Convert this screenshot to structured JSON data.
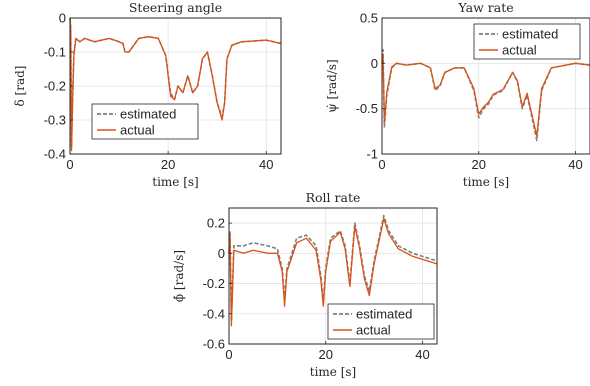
{
  "chart_data": [
    {
      "type": "line",
      "title": "Steering angle",
      "xlabel": "time [s]",
      "ylabel": "δ [rad]",
      "xlim": [
        0,
        43
      ],
      "ylim": [
        -0.4,
        0
      ],
      "xticks": [
        0,
        20,
        40
      ],
      "yticks": [
        -0.4,
        -0.3,
        -0.2,
        -0.1,
        0
      ],
      "ytick_labels": [
        "-0.4",
        "-0.3",
        "-0.2",
        "-0.1",
        "0"
      ],
      "grid": true,
      "legend": {
        "location": "lower-left",
        "entries": [
          "estimated",
          "actual"
        ]
      },
      "series": [
        {
          "name": "estimated",
          "style": "dashed",
          "color": "#7f7f7f",
          "x": [
            0,
            0.15,
            0.3,
            0.5,
            0.8,
            1.2,
            2,
            3,
            5,
            8,
            10,
            10.8,
            11.2,
            12,
            13,
            14,
            16,
            18,
            19.5,
            20.5,
            21.3,
            22,
            23,
            24,
            25,
            26,
            27,
            28,
            29,
            30,
            31,
            31.5,
            32,
            33,
            35,
            40,
            43
          ],
          "y": [
            0,
            -0.03,
            -0.38,
            -0.25,
            -0.1,
            -0.06,
            -0.07,
            -0.06,
            -0.07,
            -0.06,
            -0.07,
            -0.075,
            -0.1,
            -0.1,
            -0.08,
            -0.06,
            -0.055,
            -0.06,
            -0.11,
            -0.22,
            -0.24,
            -0.2,
            -0.22,
            -0.17,
            -0.22,
            -0.2,
            -0.12,
            -0.1,
            -0.17,
            -0.25,
            -0.29,
            -0.25,
            -0.12,
            -0.08,
            -0.07,
            -0.065,
            -0.075
          ]
        },
        {
          "name": "actual",
          "style": "solid",
          "color": "#d95319",
          "x": [
            0,
            0.15,
            0.3,
            0.5,
            0.8,
            1.2,
            2,
            3,
            5,
            8,
            10,
            10.8,
            11.2,
            12,
            13,
            14,
            16,
            18,
            19.5,
            20.5,
            21.3,
            22,
            23,
            24,
            25,
            26,
            27,
            28,
            29,
            30,
            31,
            31.5,
            32,
            33,
            35,
            40,
            43
          ],
          "y": [
            0,
            -0.03,
            -0.39,
            -0.26,
            -0.11,
            -0.06,
            -0.07,
            -0.06,
            -0.07,
            -0.06,
            -0.07,
            -0.075,
            -0.1,
            -0.1,
            -0.08,
            -0.06,
            -0.055,
            -0.06,
            -0.11,
            -0.23,
            -0.24,
            -0.2,
            -0.22,
            -0.17,
            -0.22,
            -0.2,
            -0.12,
            -0.1,
            -0.17,
            -0.25,
            -0.3,
            -0.25,
            -0.12,
            -0.08,
            -0.07,
            -0.065,
            -0.075
          ]
        }
      ]
    },
    {
      "type": "line",
      "title": "Yaw rate",
      "xlabel": "time [s]",
      "ylabel": "ψ̇ [rad/s]",
      "xlim": [
        0,
        43
      ],
      "ylim": [
        -1,
        0.5
      ],
      "xticks": [
        0,
        20,
        40
      ],
      "yticks": [
        -1,
        -0.5,
        0,
        0.5
      ],
      "ytick_labels": [
        "-1",
        "-0.5",
        "0",
        "0.5"
      ],
      "grid": true,
      "legend": {
        "location": "top-right",
        "entries": [
          "estimated",
          "actual"
        ]
      },
      "series": [
        {
          "name": "estimated",
          "style": "dashed",
          "color": "#7f7f7f",
          "x": [
            0,
            0.2,
            0.5,
            1,
            2,
            3,
            5,
            8,
            10,
            11,
            12,
            13,
            15,
            17,
            19,
            20,
            21,
            22,
            23,
            25,
            27,
            28,
            29,
            30,
            31,
            32,
            33,
            35,
            40,
            43
          ],
          "y": [
            0,
            0.15,
            -0.7,
            -0.35,
            -0.05,
            0,
            -0.02,
            0,
            -0.05,
            -0.3,
            -0.25,
            -0.1,
            -0.05,
            -0.05,
            -0.3,
            -0.6,
            -0.5,
            -0.45,
            -0.35,
            -0.3,
            -0.1,
            -0.2,
            -0.5,
            -0.35,
            -0.6,
            -0.85,
            -0.3,
            -0.05,
            0,
            -0.02
          ]
        },
        {
          "name": "actual",
          "style": "solid",
          "color": "#d95319",
          "x": [
            0,
            0.2,
            0.5,
            1,
            2,
            3,
            5,
            8,
            10,
            11,
            12,
            13,
            15,
            17,
            19,
            20,
            21,
            22,
            23,
            25,
            27,
            28,
            29,
            30,
            31,
            32,
            33,
            35,
            40,
            43
          ],
          "y": [
            0,
            0.1,
            -0.65,
            -0.32,
            -0.04,
            0,
            -0.02,
            0,
            -0.05,
            -0.28,
            -0.24,
            -0.1,
            -0.05,
            -0.05,
            -0.28,
            -0.56,
            -0.48,
            -0.43,
            -0.34,
            -0.29,
            -0.1,
            -0.19,
            -0.48,
            -0.33,
            -0.57,
            -0.8,
            -0.28,
            -0.05,
            0,
            -0.02
          ]
        }
      ]
    },
    {
      "type": "line",
      "title": "Roll rate",
      "xlabel": "time [s]",
      "ylabel": "ϕ̇ [rad/s]",
      "xlim": [
        0,
        43
      ],
      "ylim": [
        -0.6,
        0.3
      ],
      "xticks": [
        0,
        20,
        40
      ],
      "yticks": [
        -0.6,
        -0.4,
        -0.2,
        0,
        0.2
      ],
      "ytick_labels": [
        "-0.6",
        "-0.4",
        "-0.2",
        "0",
        "0.2"
      ],
      "grid": true,
      "legend": {
        "location": "bottom-right",
        "entries": [
          "estimated",
          "actual"
        ]
      },
      "series": [
        {
          "name": "estimated",
          "style": "dashed",
          "color": "#7f7f7f",
          "x": [
            0,
            0.2,
            0.5,
            1,
            3,
            5,
            8,
            10,
            11,
            11.5,
            12,
            14,
            16,
            18,
            19,
            19.5,
            20,
            21,
            23,
            24,
            25,
            26,
            27,
            28,
            29,
            30,
            31,
            32,
            33,
            35,
            38,
            40,
            43
          ],
          "y": [
            0,
            0.15,
            -0.45,
            0.05,
            0.05,
            0.07,
            0.05,
            0.03,
            -0.1,
            -0.3,
            -0.1,
            0.1,
            0.12,
            0.05,
            -0.15,
            -0.32,
            -0.1,
            0.1,
            0.15,
            0.05,
            -0.2,
            0.2,
            0.05,
            -0.15,
            -0.25,
            -0.05,
            0.1,
            0.25,
            0.15,
            0.05,
            0.0,
            -0.02,
            -0.05
          ]
        },
        {
          "name": "actual",
          "style": "solid",
          "color": "#d95319",
          "x": [
            0,
            0.2,
            0.5,
            1,
            3,
            5,
            8,
            10,
            11,
            11.5,
            12,
            14,
            16,
            18,
            19,
            19.5,
            20,
            21,
            23,
            24,
            25,
            26,
            27,
            28,
            29,
            30,
            31,
            32,
            33,
            35,
            38,
            40,
            43
          ],
          "y": [
            0,
            0.12,
            -0.48,
            0.02,
            0.0,
            0.02,
            0.0,
            0.0,
            -0.12,
            -0.35,
            -0.12,
            0.07,
            0.1,
            0.02,
            -0.18,
            -0.35,
            -0.12,
            0.08,
            0.14,
            0.03,
            -0.22,
            0.18,
            0.03,
            -0.17,
            -0.28,
            -0.07,
            0.08,
            0.23,
            0.13,
            0.03,
            -0.02,
            -0.04,
            -0.07
          ]
        }
      ]
    }
  ]
}
